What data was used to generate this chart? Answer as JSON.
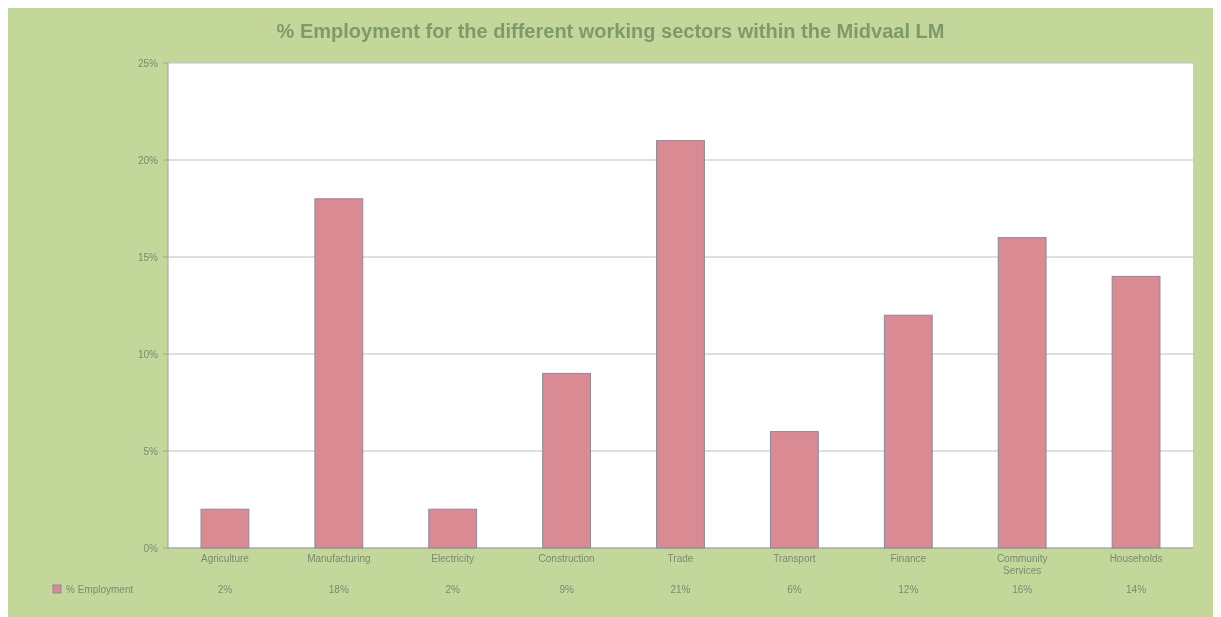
{
  "chart_data": {
    "type": "bar",
    "title": "% Employment for the different working sectors within the Midvaal LM",
    "categories": [
      "Agriculture",
      "Manufacturing",
      "Electricity",
      "Construction",
      "Trade",
      "Transport",
      "Finance",
      "Community Services",
      "Households"
    ],
    "series": [
      {
        "name": "% Employment",
        "color": "#d98a93",
        "values": [
          2,
          18,
          2,
          9,
          21,
          6,
          12,
          16,
          14
        ],
        "value_labels": [
          "2%",
          "18%",
          "2%",
          "9%",
          "21%",
          "6%",
          "12%",
          "16%",
          "14%"
        ]
      }
    ],
    "ylim": [
      0,
      25
    ],
    "yticks": [
      {
        "value": 0,
        "label": "0%"
      },
      {
        "value": 5,
        "label": "5%"
      },
      {
        "value": 10,
        "label": "10%"
      },
      {
        "value": 15,
        "label": "15%"
      },
      {
        "value": 20,
        "label": "20%"
      },
      {
        "value": 25,
        "label": "25%"
      }
    ],
    "grid": "y",
    "legend": "bottom"
  }
}
